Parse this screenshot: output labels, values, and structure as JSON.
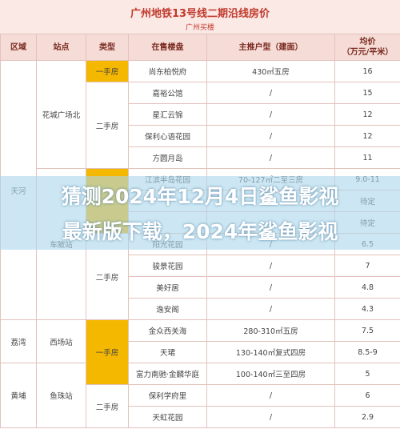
{
  "header": {
    "title": "广州地铁13号线二期沿线房价",
    "subtitle": "广州买楼"
  },
  "table": {
    "columns": [
      {
        "label": "区域"
      },
      {
        "label": "站点"
      },
      {
        "label": "类型"
      },
      {
        "label": "在售楼盘"
      },
      {
        "label": "主推户型（建面）"
      },
      {
        "label": "均价",
        "unit": "（万元/平米）"
      }
    ],
    "rows": [
      {
        "district": "天河",
        "station": "花城广场北",
        "type": "一手房",
        "estate": "尚东柏悦府",
        "layout": "430㎡五房",
        "price": "16"
      },
      {
        "type": "二手房",
        "estate": "嘉裕公馆",
        "layout": "/",
        "price": "15"
      },
      {
        "estate": "星汇云锦",
        "layout": "/",
        "price": "12"
      },
      {
        "estate": "保利心语花园",
        "layout": "/",
        "price": "12"
      },
      {
        "estate": "方圆月岛",
        "layout": "/",
        "price": "11"
      },
      {
        "station": "车陂站",
        "estate": "江滨半岛花园",
        "layout": "70-127㎡二至三房",
        "price": "9.0-11"
      },
      {
        "price": "待定"
      },
      {
        "price": "待定"
      },
      {
        "type": "二手房",
        "estate": "阳光花园",
        "layout": "/",
        "price": "6.5"
      },
      {
        "estate": "骏景花园",
        "layout": "/",
        "price": "7"
      },
      {
        "estate": "美好居",
        "layout": "/",
        "price": "4.8"
      },
      {
        "estate": "逸安阁",
        "layout": "/",
        "price": "4.3"
      },
      {
        "district": "荔湾",
        "station": "西场站",
        "type": "一手房",
        "estate": "金众西关海",
        "layout": "280-310㎡五房",
        "price": "7.5"
      },
      {
        "estate": "天珺",
        "layout": "130-140㎡复式四房",
        "price": "8.5-9"
      },
      {
        "district": "黄埔",
        "station": "鱼珠站",
        "estate": "富力南驰·金麟华庭",
        "layout": "100-140㎡三至四房",
        "price": "5"
      },
      {
        "type": "二手房",
        "estate": "保利学府里",
        "layout": "/",
        "price": "6"
      },
      {
        "estate": "天虹花园",
        "layout": "/",
        "price": "2.9"
      }
    ]
  },
  "overlay": {
    "lines": [
      "猜测2024年12月4日鲨鱼影视",
      "最新版下载，2024年鲨鱼影视"
    ]
  }
}
